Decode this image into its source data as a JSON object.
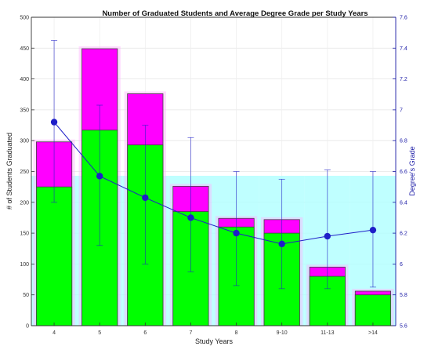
{
  "chart_data": {
    "type": "bar",
    "title": "Number of Graduated Students and Average Degree Grade per Study Years",
    "xlabel": "Study Years",
    "ylabel": "# of Students Graduated",
    "ylabel_right": "Degree's Grade",
    "categories": [
      "4",
      "5",
      "6",
      "7",
      "8",
      "9-10",
      "11-13",
      ">14"
    ],
    "ylim": [
      0,
      500
    ],
    "yticks": [
      0,
      50,
      100,
      150,
      200,
      250,
      300,
      350,
      400,
      450,
      500
    ],
    "ylim_right": [
      5.6,
      7.6
    ],
    "yticks_right": [
      "5.6",
      "5.8",
      "6",
      "6.2",
      "6.4",
      "6.6",
      "6.8",
      "7",
      "7.2",
      "7.4",
      "7.6"
    ],
    "grid": true,
    "series": [
      {
        "values": [
          225,
          317,
          293,
          185,
          160,
          150,
          80,
          50
        ],
        "color": "#00ff00"
      },
      {
        "values": [
          298,
          449,
          376,
          226,
          174,
          172,
          95,
          56
        ],
        "color": "#ff00ff"
      },
      {
        "values": [
          243,
          243,
          243,
          243,
          243,
          243,
          243,
          243
        ],
        "color": "#aaffff"
      }
    ],
    "line_series": {
      "axis": "right",
      "color": "#1f1fc8",
      "values": [
        6.92,
        6.57,
        6.43,
        6.3,
        6.2,
        6.13,
        6.18,
        6.22
      ],
      "error_low": [
        6.4,
        6.12,
        6.0,
        5.95,
        5.86,
        5.84,
        5.84,
        5.85
      ],
      "error_high": [
        7.45,
        7.03,
        6.9,
        6.82,
        6.6,
        6.55,
        6.61,
        6.6
      ]
    }
  }
}
